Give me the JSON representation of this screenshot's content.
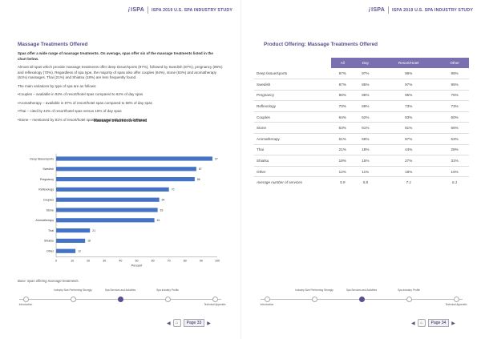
{
  "header": {
    "logo_text": "ISPA",
    "study_title": "ISPA 2019 U.S. SPA INDUSTRY STUDY"
  },
  "left": {
    "section_title": "Massage Treatments Offered",
    "lead": "Spas offer a wide range of massage treatments. On average, spas offer six of the massage treatments listed in the chart below.",
    "para1": "Almost all spas which provide massage treatments offer deep tissue/sports (97%), followed by Swedish (87%), pregnancy (86%) and reflexology (70%). Regardless of spa type, the majority of spas also offer couples (64%), stone (63%) and aromatherapy (61%) massages. Thai (21%) and Shiatsu (18%) are less frequently found.",
    "para2": "The main variations by type of spa are as follows:",
    "bullets": [
      "•Couples – available in 93% of resort/hotel spas compared to 62% of day spas",
      "•Aromatherapy – available in 87% of resort/hotel spas compared to 58% of day spas",
      "•Thai – cited by 44% of resort/hotel spas versus 18% of day spas",
      "•Stone – mentioned by 81% of resort/hotel spas compared with 61% of day spas"
    ],
    "base_note": "Base: Spas offering massage treatments.",
    "page_label": "Page 33"
  },
  "chart_data": {
    "type": "bar",
    "orientation": "horizontal",
    "title": "Massage treatments offered",
    "categories": [
      "Deep tissue/sports",
      "Swedish",
      "Pregnancy",
      "Reflexology",
      "Couples",
      "Stone",
      "Aromatherapy",
      "Thai",
      "Shiatsu",
      "Other"
    ],
    "values": [
      97,
      87,
      86,
      70,
      64,
      63,
      61,
      21,
      18,
      12
    ],
    "xlabel": "Percent",
    "xlim": [
      0,
      100
    ],
    "xticks": [
      0,
      10,
      20,
      30,
      40,
      50,
      60,
      70,
      80,
      90,
      100
    ],
    "bar_color": "#4472c4",
    "grid": false
  },
  "right": {
    "section_title": "Product Offering: Massage Treatments Offered",
    "table": {
      "headers": [
        "",
        "All",
        "Day",
        "Resort/Hotel",
        "Other"
      ],
      "rows": [
        [
          "Deep tissue/sports",
          "97%",
          "97%",
          "96%",
          "98%"
        ],
        [
          "Swedish",
          "87%",
          "85%",
          "97%",
          "95%"
        ],
        [
          "Pregnancy",
          "86%",
          "86%",
          "95%",
          "76%"
        ],
        [
          "Reflexology",
          "70%",
          "69%",
          "73%",
          "73%"
        ],
        [
          "Couples",
          "64%",
          "62%",
          "93%",
          "60%"
        ],
        [
          "Stone",
          "63%",
          "61%",
          "81%",
          "66%"
        ],
        [
          "Aromatherapy",
          "61%",
          "58%",
          "87%",
          "63%"
        ],
        [
          "Thai",
          "21%",
          "18%",
          "44%",
          "28%"
        ],
        [
          "Shiatsu",
          "18%",
          "15%",
          "27%",
          "31%"
        ],
        [
          "Other",
          "12%",
          "11%",
          "18%",
          "16%"
        ]
      ],
      "avg_row": [
        "Average number of services",
        "5.9",
        "5.8",
        "7.1",
        "6.1"
      ]
    },
    "page_label": "Page 34"
  },
  "nav": {
    "steps": [
      "Introduction",
      "Industry Size Performing Strongly",
      "Spa Services and Activities",
      "Spa Industry Profile",
      "Technical Appendix"
    ],
    "active_index": 2
  },
  "colors": {
    "accent": "#5a4f8f",
    "table_header": "#7a6fb0"
  }
}
